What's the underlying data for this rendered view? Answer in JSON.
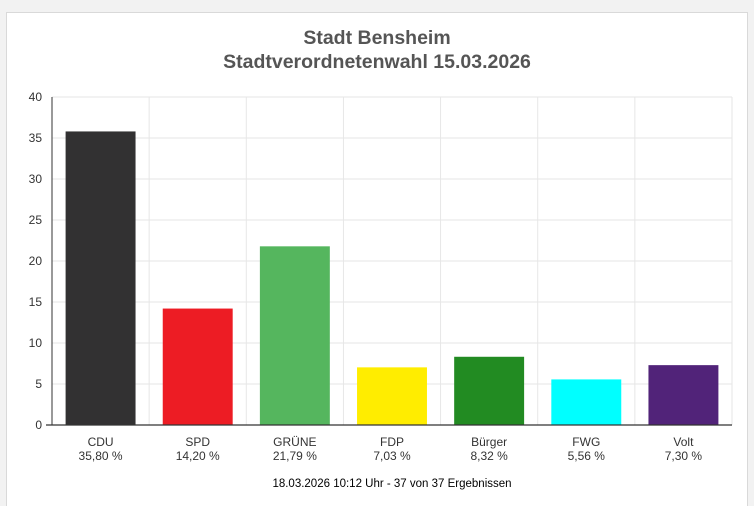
{
  "chart_data": {
    "type": "bar",
    "title": "Stadt Bensheim",
    "subtitle": "Stadtverordnetenwahl 15.03.2026",
    "categories": [
      "CDU",
      "SPD",
      "GRÜNE",
      "FDP",
      "Bürger",
      "FWG",
      "Volt"
    ],
    "values": [
      35.8,
      14.2,
      21.79,
      7.03,
      8.32,
      5.56,
      7.3
    ],
    "value_labels": [
      "35,80 %",
      "14,20 %",
      "21,79 %",
      "7,03 %",
      "8,32 %",
      "5,56 %",
      "7,30 %"
    ],
    "colors": [
      "#323132",
      "#ed1c24",
      "#55b65e",
      "#ffed00",
      "#228b22",
      "#00ffff",
      "#512379"
    ],
    "xlabel": "",
    "ylabel": "",
    "ylim": [
      0,
      40
    ],
    "yticks": [
      0,
      5,
      10,
      15,
      20,
      25,
      30,
      35,
      40
    ],
    "grid": true,
    "legend": "none"
  },
  "footer": "18.03.2026 10:12 Uhr - 37 von 37 Ergebnissen"
}
